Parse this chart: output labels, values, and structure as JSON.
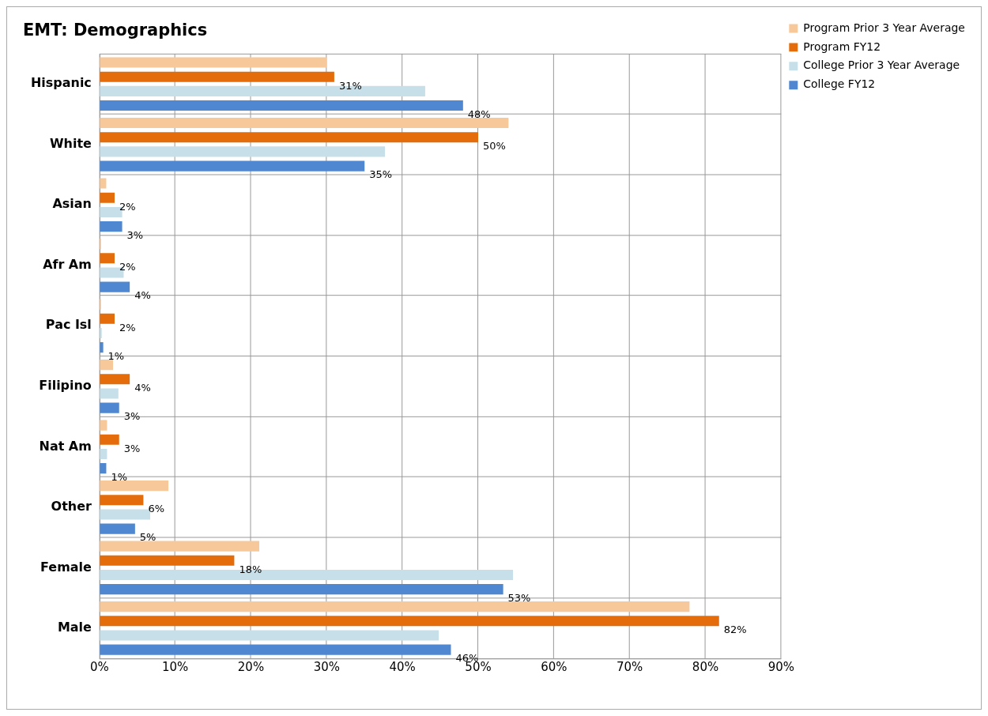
{
  "chart_data": {
    "type": "bar",
    "orientation": "horizontal",
    "title": "EMT: Demographics",
    "categories": [
      "Hispanic",
      "White",
      "Asian",
      "Afr Am",
      "Pac Isl",
      "Filipino",
      "Nat Am",
      "Other",
      "Female",
      "Male"
    ],
    "series": [
      {
        "name": "Program Prior 3 Year Average",
        "color": "#f6c89a",
        "values": [
          30,
          54,
          0.9,
          0.2,
          0.2,
          1.8,
          1,
          9.1,
          21.1,
          77.9
        ]
      },
      {
        "name": "Program FY12",
        "color": "#e46c0a",
        "values": [
          31,
          50,
          2,
          2,
          2,
          4,
          2.6,
          5.8,
          17.8,
          81.8
        ],
        "value_labels": [
          "31%",
          "50%",
          "2%",
          "2%",
          "2%",
          "4%",
          "3%",
          "6%",
          "18%",
          "82%"
        ]
      },
      {
        "name": "College Prior 3 Year Average",
        "color": "#c6dfe8",
        "values": [
          43,
          37.7,
          3,
          3.2,
          0.3,
          2.5,
          1,
          6.7,
          54.6,
          44.8
        ]
      },
      {
        "name": "College FY12",
        "color": "#4f87d0",
        "values": [
          48,
          35,
          3,
          4,
          0.5,
          2.6,
          0.9,
          4.7,
          53.3,
          46.4
        ],
        "value_labels": [
          "48%",
          "35%",
          "3%",
          "4%",
          "1%",
          "3%",
          "1%",
          "5%",
          "53%",
          "46%"
        ]
      }
    ],
    "xlim": [
      0,
      90
    ],
    "xticks": [
      {
        "value": 0,
        "label": "0%"
      },
      {
        "value": 10,
        "label": "10%"
      },
      {
        "value": 20,
        "label": "20%"
      },
      {
        "value": 30,
        "label": "30%"
      },
      {
        "value": 40,
        "label": "40%"
      },
      {
        "value": 50,
        "label": "50%"
      },
      {
        "value": 60,
        "label": "60%"
      },
      {
        "value": 70,
        "label": "70%"
      },
      {
        "value": 80,
        "label": "80%"
      },
      {
        "value": 90,
        "label": "90%"
      }
    ],
    "grid": true,
    "legend": "top right"
  }
}
